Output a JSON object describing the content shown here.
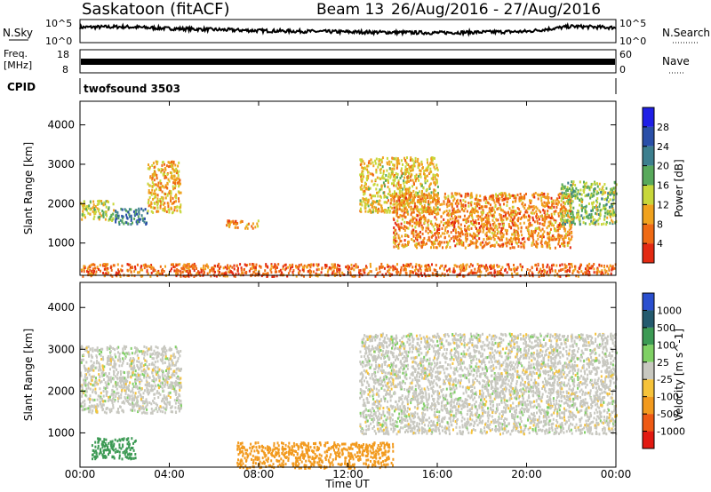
{
  "header": {
    "site": "Saskatoon (fitACF)",
    "beam": "Beam 13",
    "date_range": "26/Aug/2016 - 27/Aug/2016"
  },
  "noise_panel": {
    "left_label": "N.Sky",
    "right_label": "N.Search",
    "left_ticks": [
      "10^5",
      "10^0"
    ],
    "right_ticks": [
      "10^5",
      "10^0"
    ]
  },
  "freq_panel": {
    "left_label_1": "Freq.",
    "left_label_2": "[MHz]",
    "left_ticks": [
      "18",
      "8"
    ],
    "right_label": "Nave",
    "right_ticks": [
      "60",
      "0"
    ]
  },
  "cpid_panel": {
    "label": "CPID",
    "program": "twofsound 3503"
  },
  "power_panel": {
    "ylabel": "Slant Range [km]",
    "yticks": [
      "4000",
      "3000",
      "2000",
      "1000"
    ],
    "colorbar_label": "Power [dB]",
    "colorbar_ticks": [
      "28",
      "24",
      "20",
      "16",
      "12",
      "8",
      "4"
    ],
    "colors": [
      "#1f1fe6",
      "#2a4fa8",
      "#3d7f8e",
      "#58a95b",
      "#c8d73a",
      "#f0a21e",
      "#ef6a14",
      "#e32a12"
    ]
  },
  "velocity_panel": {
    "ylabel": "Slant Range [km]",
    "yticks": [
      "4000",
      "3000",
      "2000",
      "1000"
    ],
    "colorbar_label": "Velocity [m s^-1]",
    "colorbar_ticks": [
      "1000",
      "500",
      "100",
      "25",
      "-25",
      "-100",
      "-500",
      "-1000"
    ],
    "colors": [
      "#2a4fcf",
      "#245a6e",
      "#3c9a54",
      "#7fd064",
      "#c8c8c0",
      "#f6c33a",
      "#f29a1e",
      "#ee5a14",
      "#e21a12"
    ]
  },
  "xaxis": {
    "label": "Time UT",
    "ticks": [
      "00:00",
      "04:00",
      "08:00",
      "12:00",
      "16:00",
      "20:00",
      "00:00"
    ]
  },
  "chart_data": [
    {
      "type": "line",
      "title": "",
      "xlabel": "",
      "ylabel": "N.Sky",
      "x_range": [
        0,
        24
      ],
      "y_scale": "log",
      "y_ticks": [
        "10^0",
        "10^5"
      ],
      "description_points_x": [
        0,
        2,
        4,
        8,
        12,
        16,
        20,
        22,
        24
      ],
      "values_log10": [
        3.4,
        3.5,
        3.1,
        2.6,
        2.3,
        2.1,
        2.4,
        3.6,
        3.3
      ]
    },
    {
      "type": "line",
      "title": "",
      "xlabel": "",
      "ylabel": "Freq. [MHz]",
      "x_range": [
        0,
        24
      ],
      "ylim": [
        8,
        18
      ],
      "x": [
        0,
        24
      ],
      "values": [
        10.5,
        10.5
      ]
    },
    {
      "type": "heatmap",
      "title": "",
      "ylabel": "Slant Range [km]",
      "xlabel": "Time UT",
      "x_range": [
        0,
        24
      ],
      "ylim": [
        180,
        4600
      ],
      "colorbar": {
        "label": "Power [dB]",
        "ticks": [
          4,
          8,
          12,
          16,
          20,
          24,
          28
        ]
      },
      "regions": [
        {
          "t": [
            0.0,
            1.5
          ],
          "r": [
            1600,
            2100
          ],
          "v": 14
        },
        {
          "t": [
            1.5,
            3.0
          ],
          "r": [
            1500,
            1900
          ],
          "v": 22
        },
        {
          "t": [
            3.0,
            4.5
          ],
          "r": [
            1800,
            3100
          ],
          "v": 10
        },
        {
          "t": [
            6.5,
            8.0
          ],
          "r": [
            1400,
            1600
          ],
          "v": 8
        },
        {
          "t": [
            12.5,
            16.0
          ],
          "r": [
            1800,
            3200
          ],
          "v": 12
        },
        {
          "t": [
            14.0,
            22.0
          ],
          "r": [
            900,
            2300
          ],
          "v": 8
        },
        {
          "t": [
            21.5,
            24.0
          ],
          "r": [
            1500,
            2600
          ],
          "v": 16
        },
        {
          "t": [
            0.0,
            24.0
          ],
          "r": [
            180,
            500
          ],
          "v": 6
        }
      ]
    },
    {
      "type": "heatmap",
      "title": "",
      "ylabel": "Slant Range [km]",
      "xlabel": "Time UT",
      "x_range": [
        0,
        24
      ],
      "ylim": [
        180,
        4600
      ],
      "colorbar": {
        "label": "Velocity [m s^-1]",
        "ticks": [
          -1000,
          -500,
          -100,
          -25,
          25,
          100,
          500,
          1000
        ]
      },
      "regions": [
        {
          "t": [
            0.0,
            4.5
          ],
          "r": [
            1500,
            3100
          ],
          "v": 0
        },
        {
          "t": [
            0.5,
            2.5
          ],
          "r": [
            400,
            900
          ],
          "v": 150
        },
        {
          "t": [
            7.0,
            14.0
          ],
          "r": [
            180,
            800
          ],
          "v": -200
        },
        {
          "t": [
            12.5,
            24.0
          ],
          "r": [
            1000,
            3400
          ],
          "v": 0
        }
      ]
    }
  ]
}
